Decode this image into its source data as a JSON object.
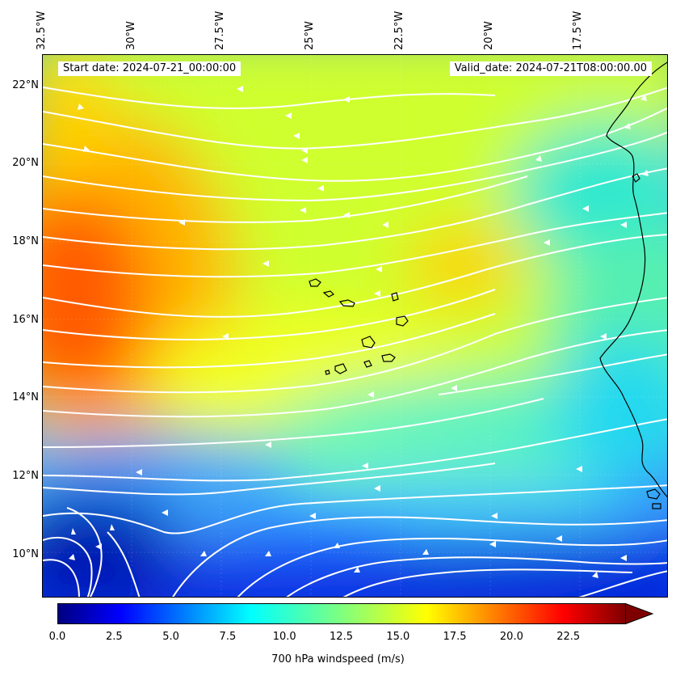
{
  "header": {
    "start_date": "Start date: 2024-07-21_00:00:00",
    "valid_date": "Valid_date: 2024-07-21T08:00:00.00"
  },
  "map": {
    "lon_labels": [
      {
        "text": "32.5°W",
        "lon": -32.5
      },
      {
        "text": "30°W",
        "lon": -30
      },
      {
        "text": "27.5°W",
        "lon": -27.5
      },
      {
        "text": "25°W",
        "lon": -25
      },
      {
        "text": "22.5°W",
        "lon": -22.5
      },
      {
        "text": "20°W",
        "lon": -20
      },
      {
        "text": "17.5°W",
        "lon": -17.5
      }
    ],
    "lat_labels": [
      {
        "text": "22°N",
        "lat": 22
      },
      {
        "text": "20°N",
        "lat": 20
      },
      {
        "text": "18°N",
        "lat": 18
      },
      {
        "text": "16°N",
        "lat": 16
      },
      {
        "text": "14°N",
        "lat": 14
      },
      {
        "text": "12°N",
        "lat": 12
      },
      {
        "text": "10°N",
        "lat": 10
      }
    ],
    "lon_range": [
      -32.5,
      -15.0
    ],
    "lat_range": [
      8.9,
      22.8
    ],
    "colormap": "jet",
    "streamline_color": "#ffffff",
    "coastline_color": "#000000"
  },
  "colorbar": {
    "label": "700 hPa windspeed (m/s)",
    "ticks": [
      "0.0",
      "2.5",
      "5.0",
      "7.5",
      "10.0",
      "12.5",
      "15.0",
      "17.5",
      "20.0",
      "22.5"
    ],
    "min": 0,
    "max": 25,
    "extend": "max"
  }
}
